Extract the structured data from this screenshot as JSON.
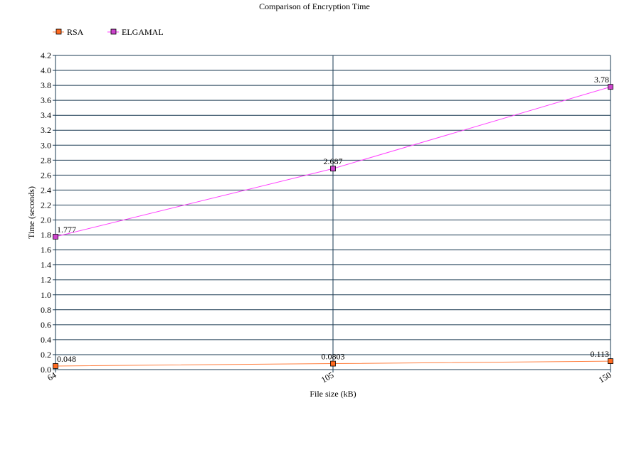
{
  "chart_data": {
    "type": "line",
    "title": "Comparison of Encryption Time",
    "xlabel": "File size (kB)",
    "ylabel": "Time (seconds)",
    "categories": [
      "64",
      "105",
      "150"
    ],
    "ylim": [
      0,
      4.2
    ],
    "y_ticks": [
      "0.0",
      "0.2",
      "0.4",
      "0.6",
      "0.8",
      "1.0",
      "1.2",
      "1.4",
      "1.6",
      "1.8",
      "2.0",
      "2.2",
      "2.4",
      "2.6",
      "2.8",
      "3.0",
      "3.2",
      "3.4",
      "3.6",
      "3.8",
      "4.0",
      "4.2"
    ],
    "grid": true,
    "legend_position": "top-left",
    "series": [
      {
        "name": "RSA",
        "values": [
          0.048,
          0.0803,
          0.113
        ],
        "labels": [
          "0.048",
          "0.0803",
          "0.113"
        ],
        "color": "#ff7f3f",
        "marker_color": "#ff6a20"
      },
      {
        "name": "ELGAMAL",
        "values": [
          1.777,
          2.687,
          3.78
        ],
        "labels": [
          "1.777",
          "2.687",
          "3.78"
        ],
        "color": "#ff40ff",
        "marker_color": "#cc44cc"
      }
    ]
  }
}
